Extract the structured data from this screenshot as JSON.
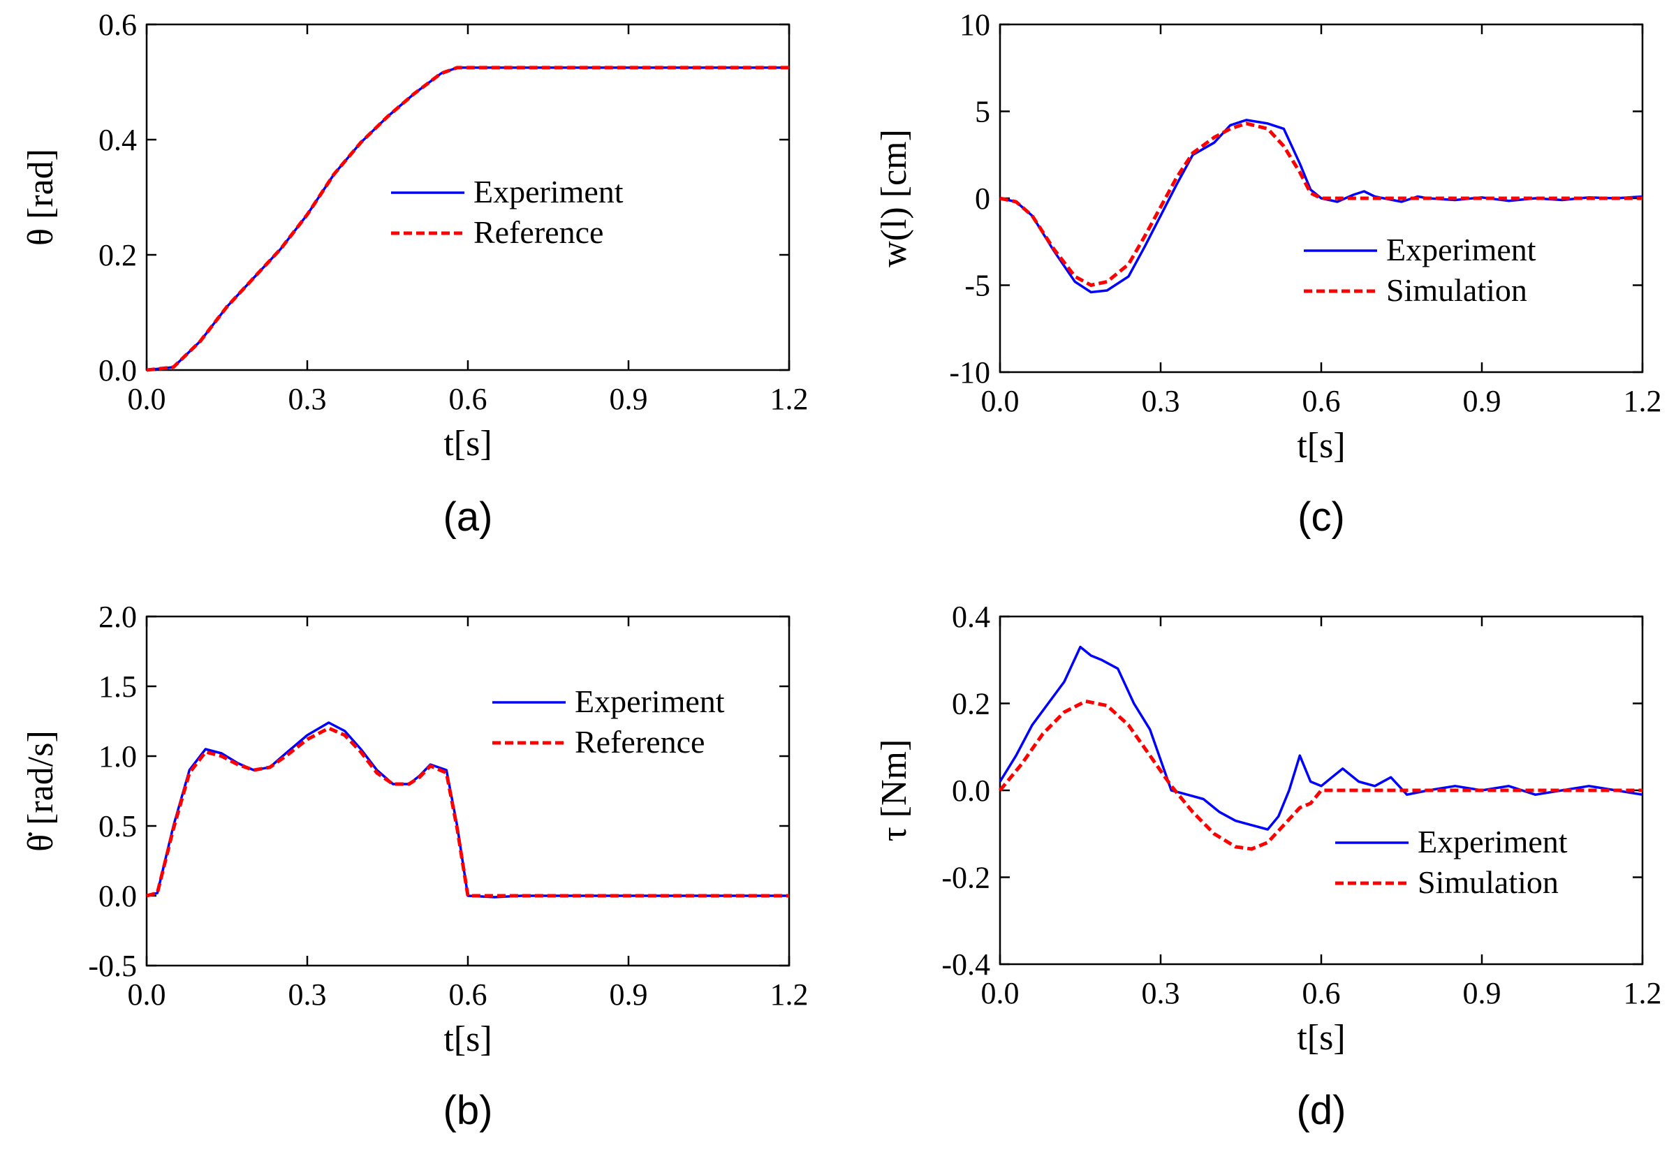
{
  "chart_data": [
    {
      "id": "a",
      "type": "line",
      "panel_label": "(a)",
      "ylabel": "θ [rad]",
      "xlabel": "t[s]",
      "xlim": [
        0,
        1.2
      ],
      "ylim": [
        0,
        0.6
      ],
      "xticks": [
        "0.0",
        "0.3",
        "0.6",
        "0.9",
        "1.2"
      ],
      "yticks": [
        "0.0",
        "0.2",
        "0.4",
        "0.6"
      ],
      "legend_position": "center-right",
      "series": [
        {
          "name": "Experiment",
          "style": "solid",
          "color": "#0000ff",
          "points": [
            [
              0,
              0
            ],
            [
              0.05,
              0.005
            ],
            [
              0.1,
              0.05
            ],
            [
              0.15,
              0.11
            ],
            [
              0.2,
              0.16
            ],
            [
              0.25,
              0.21
            ],
            [
              0.3,
              0.27
            ],
            [
              0.35,
              0.34
            ],
            [
              0.4,
              0.395
            ],
            [
              0.45,
              0.44
            ],
            [
              0.5,
              0.48
            ],
            [
              0.55,
              0.515
            ],
            [
              0.58,
              0.525
            ],
            [
              0.6,
              0.525
            ],
            [
              0.9,
              0.525
            ],
            [
              1.2,
              0.525
            ]
          ]
        },
        {
          "name": "Reference",
          "style": "dashed",
          "color": "#ff0000",
          "points": [
            [
              0,
              0
            ],
            [
              0.05,
              0.005
            ],
            [
              0.1,
              0.05
            ],
            [
              0.15,
              0.11
            ],
            [
              0.2,
              0.16
            ],
            [
              0.25,
              0.21
            ],
            [
              0.3,
              0.27
            ],
            [
              0.35,
              0.34
            ],
            [
              0.4,
              0.395
            ],
            [
              0.45,
              0.44
            ],
            [
              0.5,
              0.48
            ],
            [
              0.55,
              0.515
            ],
            [
              0.58,
              0.525
            ],
            [
              0.6,
              0.525
            ],
            [
              0.9,
              0.525
            ],
            [
              1.2,
              0.525
            ]
          ]
        }
      ]
    },
    {
      "id": "b",
      "type": "line",
      "panel_label": "(b)",
      "ylabel": "θ̇ [rad/s]",
      "xlabel": "t[s]",
      "xlim": [
        0,
        1.2
      ],
      "ylim": [
        -0.5,
        2.0
      ],
      "xticks": [
        "0.0",
        "0.3",
        "0.6",
        "0.9",
        "1.2"
      ],
      "yticks": [
        "-0.5",
        "0.0",
        "0.5",
        "1.0",
        "1.5",
        "2.0"
      ],
      "legend_position": "top-right",
      "series": [
        {
          "name": "Experiment",
          "style": "solid",
          "color": "#0000ff",
          "points": [
            [
              0,
              0
            ],
            [
              0.02,
              0.02
            ],
            [
              0.05,
              0.5
            ],
            [
              0.08,
              0.9
            ],
            [
              0.11,
              1.05
            ],
            [
              0.14,
              1.02
            ],
            [
              0.17,
              0.95
            ],
            [
              0.2,
              0.9
            ],
            [
              0.23,
              0.92
            ],
            [
              0.26,
              1.02
            ],
            [
              0.3,
              1.15
            ],
            [
              0.34,
              1.24
            ],
            [
              0.37,
              1.18
            ],
            [
              0.4,
              1.05
            ],
            [
              0.43,
              0.9
            ],
            [
              0.46,
              0.8
            ],
            [
              0.49,
              0.8
            ],
            [
              0.51,
              0.86
            ],
            [
              0.53,
              0.94
            ],
            [
              0.56,
              0.9
            ],
            [
              0.58,
              0.5
            ],
            [
              0.6,
              0.0
            ],
            [
              0.65,
              -0.01
            ],
            [
              0.7,
              0.0
            ],
            [
              0.8,
              0.0
            ],
            [
              0.9,
              0.0
            ],
            [
              1.0,
              0.0
            ],
            [
              1.1,
              0.0
            ],
            [
              1.2,
              0.0
            ]
          ]
        },
        {
          "name": "Reference",
          "style": "dashed",
          "color": "#ff0000",
          "points": [
            [
              0,
              0
            ],
            [
              0.02,
              0.02
            ],
            [
              0.05,
              0.48
            ],
            [
              0.08,
              0.88
            ],
            [
              0.11,
              1.03
            ],
            [
              0.14,
              1.0
            ],
            [
              0.17,
              0.94
            ],
            [
              0.2,
              0.9
            ],
            [
              0.23,
              0.92
            ],
            [
              0.26,
              1.0
            ],
            [
              0.3,
              1.12
            ],
            [
              0.34,
              1.2
            ],
            [
              0.37,
              1.15
            ],
            [
              0.4,
              1.03
            ],
            [
              0.43,
              0.88
            ],
            [
              0.46,
              0.8
            ],
            [
              0.49,
              0.8
            ],
            [
              0.51,
              0.85
            ],
            [
              0.53,
              0.93
            ],
            [
              0.56,
              0.88
            ],
            [
              0.58,
              0.48
            ],
            [
              0.6,
              0.0
            ],
            [
              0.7,
              0.0
            ],
            [
              0.9,
              0.0
            ],
            [
              1.2,
              0.0
            ]
          ]
        }
      ]
    },
    {
      "id": "c",
      "type": "line",
      "panel_label": "(c)",
      "ylabel": "w(l) [cm]",
      "xlabel": "t[s]",
      "xlim": [
        0,
        1.2
      ],
      "ylim": [
        -10,
        10
      ],
      "xticks": [
        "0.0",
        "0.3",
        "0.6",
        "0.9",
        "1.2"
      ],
      "yticks": [
        "-10",
        "-5",
        "0",
        "5",
        "10"
      ],
      "legend_position": "bottom-right",
      "series": [
        {
          "name": "Experiment",
          "style": "solid",
          "color": "#0000ff",
          "points": [
            [
              0,
              0
            ],
            [
              0.03,
              -0.2
            ],
            [
              0.06,
              -1
            ],
            [
              0.1,
              -3
            ],
            [
              0.14,
              -4.8
            ],
            [
              0.17,
              -5.4
            ],
            [
              0.2,
              -5.3
            ],
            [
              0.24,
              -4.5
            ],
            [
              0.27,
              -2.8
            ],
            [
              0.3,
              -1
            ],
            [
              0.33,
              0.8
            ],
            [
              0.36,
              2.5
            ],
            [
              0.4,
              3.2
            ],
            [
              0.43,
              4.2
            ],
            [
              0.46,
              4.5
            ],
            [
              0.5,
              4.3
            ],
            [
              0.53,
              4.0
            ],
            [
              0.56,
              2.0
            ],
            [
              0.58,
              0.5
            ],
            [
              0.6,
              0
            ],
            [
              0.63,
              -0.2
            ],
            [
              0.66,
              0.2
            ],
            [
              0.68,
              0.4
            ],
            [
              0.7,
              0.1
            ],
            [
              0.75,
              -0.2
            ],
            [
              0.78,
              0.1
            ],
            [
              0.8,
              0.0
            ],
            [
              0.85,
              -0.1
            ],
            [
              0.9,
              0.05
            ],
            [
              0.95,
              -0.15
            ],
            [
              1.0,
              0.0
            ],
            [
              1.05,
              -0.1
            ],
            [
              1.1,
              0.05
            ],
            [
              1.15,
              0.0
            ],
            [
              1.2,
              0.1
            ]
          ]
        },
        {
          "name": "Simulation",
          "style": "dashed",
          "color": "#ff0000",
          "points": [
            [
              0,
              0
            ],
            [
              0.03,
              -0.2
            ],
            [
              0.06,
              -1
            ],
            [
              0.1,
              -2.9
            ],
            [
              0.14,
              -4.5
            ],
            [
              0.17,
              -5.0
            ],
            [
              0.2,
              -4.8
            ],
            [
              0.24,
              -3.8
            ],
            [
              0.27,
              -2.2
            ],
            [
              0.3,
              -0.5
            ],
            [
              0.33,
              1.2
            ],
            [
              0.36,
              2.6
            ],
            [
              0.4,
              3.5
            ],
            [
              0.43,
              4.0
            ],
            [
              0.46,
              4.3
            ],
            [
              0.5,
              4.0
            ],
            [
              0.53,
              3.0
            ],
            [
              0.56,
              1.5
            ],
            [
              0.58,
              0.3
            ],
            [
              0.6,
              0
            ],
            [
              0.7,
              0
            ],
            [
              0.9,
              0
            ],
            [
              1.2,
              0
            ]
          ]
        }
      ]
    },
    {
      "id": "d",
      "type": "line",
      "panel_label": "(d)",
      "ylabel": "τ [Nm]",
      "xlabel": "t[s]",
      "xlim": [
        0,
        1.2
      ],
      "ylim": [
        -0.4,
        0.4
      ],
      "xticks": [
        "0.0",
        "0.3",
        "0.6",
        "0.9",
        "1.2"
      ],
      "yticks": [
        "-0.4",
        "-0.2",
        "0.0",
        "0.2",
        "0.4"
      ],
      "legend_position": "bottom-right",
      "series": [
        {
          "name": "Experiment",
          "style": "solid",
          "color": "#0000ff",
          "points": [
            [
              0,
              0.02
            ],
            [
              0.03,
              0.08
            ],
            [
              0.06,
              0.15
            ],
            [
              0.09,
              0.2
            ],
            [
              0.12,
              0.25
            ],
            [
              0.15,
              0.33
            ],
            [
              0.17,
              0.31
            ],
            [
              0.19,
              0.3
            ],
            [
              0.22,
              0.28
            ],
            [
              0.25,
              0.2
            ],
            [
              0.28,
              0.14
            ],
            [
              0.3,
              0.07
            ],
            [
              0.32,
              0.0
            ],
            [
              0.35,
              -0.01
            ],
            [
              0.38,
              -0.02
            ],
            [
              0.41,
              -0.05
            ],
            [
              0.44,
              -0.07
            ],
            [
              0.47,
              -0.08
            ],
            [
              0.5,
              -0.09
            ],
            [
              0.52,
              -0.06
            ],
            [
              0.54,
              0.0
            ],
            [
              0.56,
              0.08
            ],
            [
              0.58,
              0.02
            ],
            [
              0.6,
              0.01
            ],
            [
              0.62,
              0.03
            ],
            [
              0.64,
              0.05
            ],
            [
              0.67,
              0.02
            ],
            [
              0.7,
              0.01
            ],
            [
              0.73,
              0.03
            ],
            [
              0.76,
              -0.01
            ],
            [
              0.8,
              0.0
            ],
            [
              0.85,
              0.01
            ],
            [
              0.9,
              0.0
            ],
            [
              0.95,
              0.01
            ],
            [
              1.0,
              -0.01
            ],
            [
              1.05,
              0.0
            ],
            [
              1.1,
              0.01
            ],
            [
              1.15,
              0.0
            ],
            [
              1.2,
              -0.01
            ]
          ]
        },
        {
          "name": "Simulation",
          "style": "dashed",
          "color": "#ff0000",
          "points": [
            [
              0,
              0
            ],
            [
              0.04,
              0.06
            ],
            [
              0.08,
              0.13
            ],
            [
              0.12,
              0.18
            ],
            [
              0.16,
              0.205
            ],
            [
              0.2,
              0.195
            ],
            [
              0.24,
              0.15
            ],
            [
              0.28,
              0.08
            ],
            [
              0.32,
              0.01
            ],
            [
              0.36,
              -0.05
            ],
            [
              0.4,
              -0.1
            ],
            [
              0.44,
              -0.13
            ],
            [
              0.47,
              -0.135
            ],
            [
              0.5,
              -0.12
            ],
            [
              0.53,
              -0.08
            ],
            [
              0.56,
              -0.04
            ],
            [
              0.58,
              -0.03
            ],
            [
              0.6,
              0
            ],
            [
              0.7,
              0
            ],
            [
              0.8,
              0
            ],
            [
              0.9,
              0
            ],
            [
              1.0,
              0
            ],
            [
              1.1,
              0
            ],
            [
              1.2,
              0
            ]
          ]
        }
      ]
    }
  ]
}
